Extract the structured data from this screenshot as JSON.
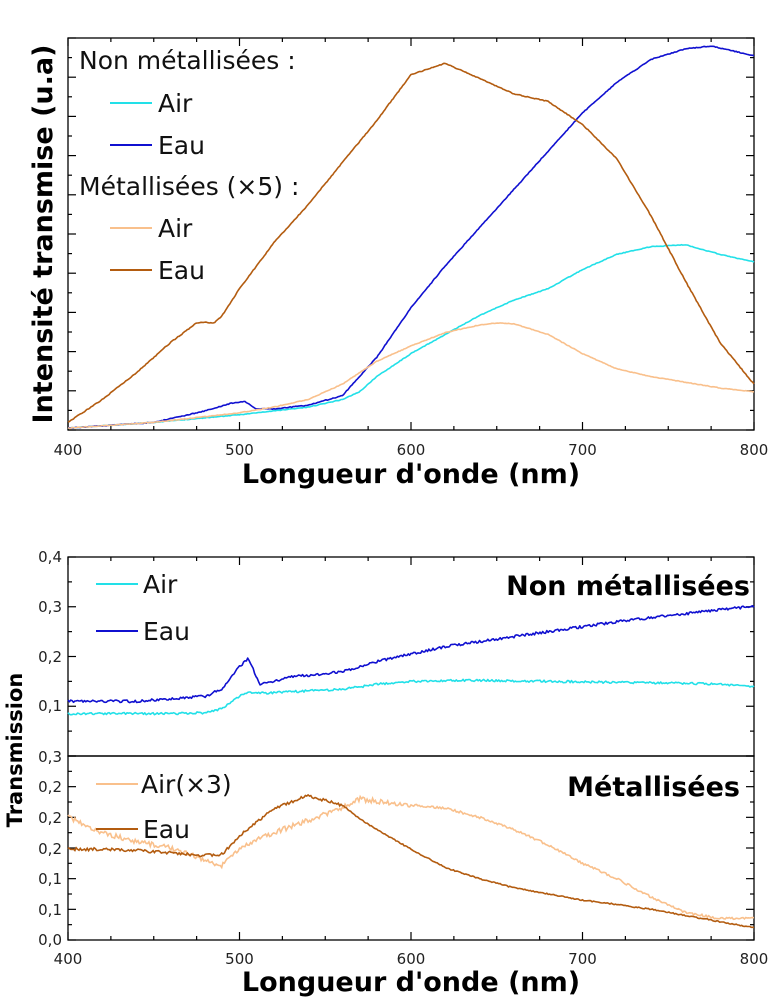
{
  "colors": {
    "cyan": "#22e0e8",
    "blue": "#1010d0",
    "peach": "#f9c08c",
    "brown": "#b35c10"
  },
  "chart_data": [
    {
      "type": "line",
      "xlabel": "Longueur d'onde (nm)",
      "ylabel": "Intensité transmise (u.a)",
      "xlim": [
        400,
        800
      ],
      "ylim": [
        0,
        100
      ],
      "x_ticks": [
        "400",
        "500",
        "600",
        "700",
        "800"
      ],
      "y_ticks_labeled": false,
      "legend": {
        "placement": "top-left",
        "groups": [
          {
            "heading": "Non métallisées :",
            "entries": [
              {
                "label": "Air",
                "color": "cyan"
              },
              {
                "label": "Eau",
                "color": "blue"
              }
            ]
          },
          {
            "heading": "Métallisées (×5) :",
            "entries": [
              {
                "label": "Air",
                "color": "peach"
              },
              {
                "label": "Eau",
                "color": "brown"
              }
            ]
          }
        ]
      },
      "series": [
        {
          "key": "non-air",
          "color": "cyan",
          "noise": 0.3,
          "x": [
            400,
            450,
            500,
            520,
            540,
            560,
            570,
            580,
            600,
            620,
            640,
            660,
            680,
            700,
            720,
            740,
            760,
            780,
            800
          ],
          "values": [
            0.5,
            2,
            4,
            5,
            6,
            8,
            10,
            14,
            20,
            25,
            30,
            34,
            37,
            42,
            46,
            48,
            48.5,
            46,
            44
          ]
        },
        {
          "key": "non-eau",
          "color": "blue",
          "noise": 0.35,
          "x": [
            400,
            450,
            480,
            495,
            503,
            510,
            520,
            540,
            560,
            580,
            600,
            620,
            640,
            660,
            680,
            700,
            720,
            740,
            760,
            775,
            790,
            800
          ],
          "values": [
            0.5,
            2,
            5,
            7,
            7.5,
            5.5,
            5.5,
            6.5,
            9,
            19,
            32,
            43,
            53,
            63,
            73,
            83,
            91,
            97,
            99.8,
            100.5,
            99,
            98
          ]
        },
        {
          "key": "met-air",
          "color": "peach",
          "noise": 0.3,
          "x": [
            400,
            450,
            500,
            520,
            540,
            560,
            580,
            600,
            620,
            640,
            650,
            660,
            680,
            700,
            720,
            740,
            760,
            780,
            800
          ],
          "values": [
            0.5,
            2,
            4.5,
            6,
            8,
            12,
            18,
            22,
            25.5,
            27.5,
            28,
            27.8,
            25,
            20,
            16,
            14,
            12.5,
            11,
            10
          ]
        },
        {
          "key": "met-eau",
          "color": "brown",
          "noise": 0.4,
          "x": [
            400,
            420,
            440,
            460,
            475,
            480,
            485,
            490,
            500,
            520,
            540,
            560,
            580,
            600,
            620,
            640,
            660,
            680,
            700,
            720,
            740,
            760,
            780,
            800
          ],
          "values": [
            2,
            8,
            15,
            23,
            28,
            28.2,
            28,
            30,
            37,
            49,
            59,
            70,
            81,
            93,
            96,
            92,
            88,
            86,
            80,
            71,
            56,
            39,
            23,
            12
          ]
        }
      ]
    },
    {
      "type": "line",
      "ylabel": "Transmission",
      "xlim": [
        400,
        800
      ],
      "panels": [
        {
          "title": "Non métallisées",
          "ylim": [
            0,
            0.4
          ],
          "y_tick_values": [
            0.1,
            0.2,
            0.3,
            0.4
          ],
          "y_tick_labels": [
            "0,1",
            "0,2",
            "0,3",
            "0,4"
          ],
          "legend": {
            "placement": "top-left",
            "entries": [
              {
                "label": "Air",
                "color": "cyan"
              },
              {
                "label": "Eau",
                "color": "blue"
              }
            ]
          },
          "series": [
            {
              "key": "t-non-air",
              "color": "cyan",
              "x": [
                400,
                420,
                440,
                460,
                480,
                490,
                500,
                505,
                510,
                520,
                540,
                560,
                580,
                600,
                620,
                640,
                660,
                680,
                700,
                720,
                740,
                760,
                780,
                800
              ],
              "values": [
                0.085,
                0.085,
                0.085,
                0.085,
                0.087,
                0.095,
                0.12,
                0.128,
                0.126,
                0.127,
                0.131,
                0.134,
                0.144,
                0.15,
                0.152,
                0.152,
                0.151,
                0.15,
                0.149,
                0.148,
                0.147,
                0.146,
                0.144,
                0.14
              ]
            },
            {
              "key": "t-non-eau",
              "color": "blue",
              "x": [
                400,
                420,
                440,
                460,
                480,
                490,
                500,
                505,
                512,
                520,
                530,
                540,
                560,
                580,
                600,
                620,
                640,
                660,
                680,
                700,
                720,
                740,
                760,
                780,
                800
              ],
              "values": [
                0.11,
                0.11,
                0.11,
                0.115,
                0.12,
                0.135,
                0.18,
                0.195,
                0.145,
                0.15,
                0.16,
                0.162,
                0.17,
                0.19,
                0.205,
                0.22,
                0.23,
                0.24,
                0.25,
                0.26,
                0.27,
                0.278,
                0.286,
                0.294,
                0.301
              ]
            }
          ]
        },
        {
          "title": "Métallisées",
          "ylim": [
            0,
            0.3
          ],
          "y_tick_values": [
            0,
            0.05,
            0.1,
            0.15,
            0.2,
            0.25,
            0.3
          ],
          "y_tick_labels": [
            "0,0",
            "0,1",
            "0,1",
            "0,2",
            "0,2",
            "0,2",
            "0,3"
          ],
          "legend": {
            "placement": "top-left",
            "entries": [
              {
                "label": "Air(×3)",
                "color": "peach"
              },
              {
                "label": "Eau",
                "color": "brown"
              }
            ]
          },
          "series": [
            {
              "key": "t-met-air",
              "color": "peach",
              "x": [
                400,
                405,
                420,
                440,
                460,
                480,
                488,
                490,
                500,
                520,
                540,
                560,
                570,
                580,
                600,
                620,
                640,
                660,
                680,
                700,
                720,
                740,
                760,
                780,
                800
              ],
              "values": [
                0.2,
                0.195,
                0.175,
                0.16,
                0.15,
                0.13,
                0.12,
                0.122,
                0.15,
                0.175,
                0.195,
                0.215,
                0.23,
                0.226,
                0.22,
                0.215,
                0.2,
                0.18,
                0.155,
                0.125,
                0.1,
                0.07,
                0.045,
                0.035,
                0.035
              ]
            },
            {
              "key": "t-met-eau",
              "color": "brown",
              "x": [
                400,
                420,
                440,
                460,
                480,
                490,
                500,
                520,
                540,
                560,
                570,
                580,
                600,
                620,
                640,
                660,
                680,
                700,
                720,
                740,
                760,
                780,
                800
              ],
              "values": [
                0.148,
                0.148,
                0.146,
                0.142,
                0.138,
                0.14,
                0.17,
                0.215,
                0.235,
                0.22,
                0.198,
                0.18,
                0.148,
                0.118,
                0.1,
                0.085,
                0.075,
                0.065,
                0.058,
                0.05,
                0.04,
                0.03,
                0.02
              ]
            }
          ]
        }
      ]
    }
  ]
}
